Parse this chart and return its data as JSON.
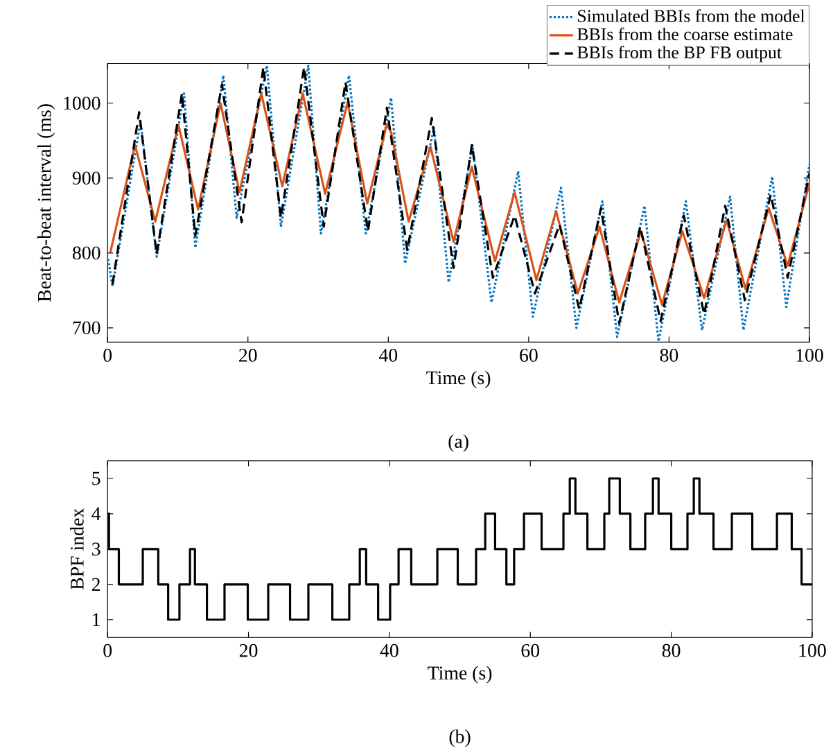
{
  "chart_data": [
    {
      "type": "line",
      "xlabel": "Time (s)",
      "ylabel": "Beat-to-beat interval (ms)",
      "annotations": [
        "(a)"
      ],
      "xlim": [
        0,
        100
      ],
      "ylim": [
        681,
        1053
      ],
      "xticks": [
        0,
        20,
        40,
        60,
        80,
        100
      ],
      "yticks": [
        700,
        800,
        900,
        1000
      ],
      "legend": "top right",
      "series": [
        {
          "name": "Simulated BBIs from the model",
          "color": "#0072bd",
          "line_style": "dotted",
          "x": [
            0.1,
            0.7,
            4.7,
            7.0,
            10.9,
            12.5,
            16.5,
            18.4,
            22.7,
            24.7,
            28.6,
            30.4,
            34.4,
            36.8,
            40.4,
            42.4,
            46.5,
            48.6,
            52.0,
            54.7,
            58.5,
            60.6,
            64.6,
            66.8,
            70.5,
            72.6,
            76.5,
            78.5,
            82.4,
            84.7,
            88.7,
            90.6,
            94.7,
            96.7,
            100
          ],
          "values": [
            792,
            755,
            976,
            795,
            1013,
            807,
            1037,
            847,
            1050,
            835,
            1050,
            826,
            1037,
            826,
            1007,
            786,
            967,
            761,
            944,
            734,
            909,
            715,
            887,
            700,
            869,
            688,
            863,
            682,
            869,
            697,
            875,
            697,
            902,
            728,
            918
          ]
        },
        {
          "name": "BBIs from the coarse estimate",
          "color": "#d95319",
          "line_style": "solid",
          "x": [
            0.4,
            3.9,
            6.8,
            10.1,
            12.9,
            16.1,
            18.8,
            21.9,
            24.9,
            27.8,
            31.0,
            34.2,
            37.0,
            39.8,
            40.4,
            42.9,
            46.0,
            49.3,
            51.9,
            55.2,
            58.0,
            61.1,
            63.9,
            67.0,
            70.1,
            72.9,
            76.0,
            79.0,
            81.9,
            85.0,
            88.2,
            90.9,
            94.2,
            96.9,
            100
          ],
          "values": [
            801,
            944,
            842,
            971,
            858,
            1000,
            881,
            1013,
            889,
            1013,
            879,
            1001,
            866,
            972,
            961,
            842,
            942,
            815,
            915,
            789,
            881,
            764,
            856,
            746,
            835,
            734,
            829,
            731,
            829,
            740,
            844,
            752,
            860,
            783,
            893
          ]
        },
        {
          "name": "BBIs from the BP FB output",
          "color": "#000000",
          "line_style": "dashed",
          "x": [
            0.7,
            4.5,
            7.0,
            10.6,
            12.5,
            16.3,
            19.1,
            22.2,
            24.7,
            28.0,
            30.8,
            33.9,
            37.1,
            39.8,
            42.7,
            46.2,
            49.3,
            51.9,
            54.9,
            58.0,
            60.9,
            64.4,
            67.2,
            70.3,
            72.9,
            75.9,
            78.8,
            82.1,
            85.0,
            88.0,
            90.8,
            94.5,
            96.9,
            100
          ],
          "values": [
            758,
            988,
            798,
            1013,
            823,
            1025,
            841,
            1048,
            847,
            1048,
            835,
            1028,
            829,
            994,
            804,
            980,
            780,
            944,
            767,
            850,
            746,
            838,
            725,
            860,
            706,
            835,
            709,
            850,
            718,
            863,
            737,
            878,
            767,
            906
          ]
        }
      ]
    },
    {
      "type": "step",
      "xlabel": "Time (s)",
      "ylabel": "BPF index",
      "annotations": [
        "(b)"
      ],
      "xlim": [
        0,
        100
      ],
      "ylim": [
        0.5,
        5.5
      ],
      "xticks": [
        0,
        20,
        40,
        60,
        80,
        100
      ],
      "yticks": [
        1,
        2,
        3,
        4,
        5
      ],
      "series": [
        {
          "color": "#000000",
          "line_style": "solid",
          "x": [
            0,
            0.2,
            1.6,
            5.0,
            7.2,
            8.6,
            10.2,
            11.7,
            12.4,
            14.1,
            16.6,
            19.9,
            22.8,
            25.9,
            28.5,
            31.9,
            34.3,
            35.8,
            36.7,
            38.4,
            40.1,
            41.3,
            43.1,
            46.8,
            49.7,
            52.3,
            53.6,
            55.0,
            56.6,
            57.7,
            59.1,
            61.6,
            64.7,
            65.6,
            66.4,
            68.1,
            70.5,
            71.2,
            72.7,
            74.2,
            76.3,
            77.4,
            78.2,
            80.0,
            82.3,
            83.2,
            84.0,
            86.0,
            88.6,
            91.5,
            95.0,
            97.1,
            98.5,
            100
          ],
          "values": [
            4,
            3,
            2,
            3,
            2,
            1,
            2,
            3,
            2,
            1,
            2,
            1,
            2,
            1,
            2,
            1,
            2,
            3,
            2,
            1,
            2,
            3,
            2,
            3,
            2,
            3,
            4,
            3,
            2,
            3,
            4,
            3,
            4,
            5,
            4,
            3,
            4,
            5,
            4,
            3,
            4,
            5,
            4,
            3,
            4,
            5,
            4,
            3,
            4,
            3,
            4,
            3,
            2,
            2
          ]
        }
      ]
    }
  ]
}
